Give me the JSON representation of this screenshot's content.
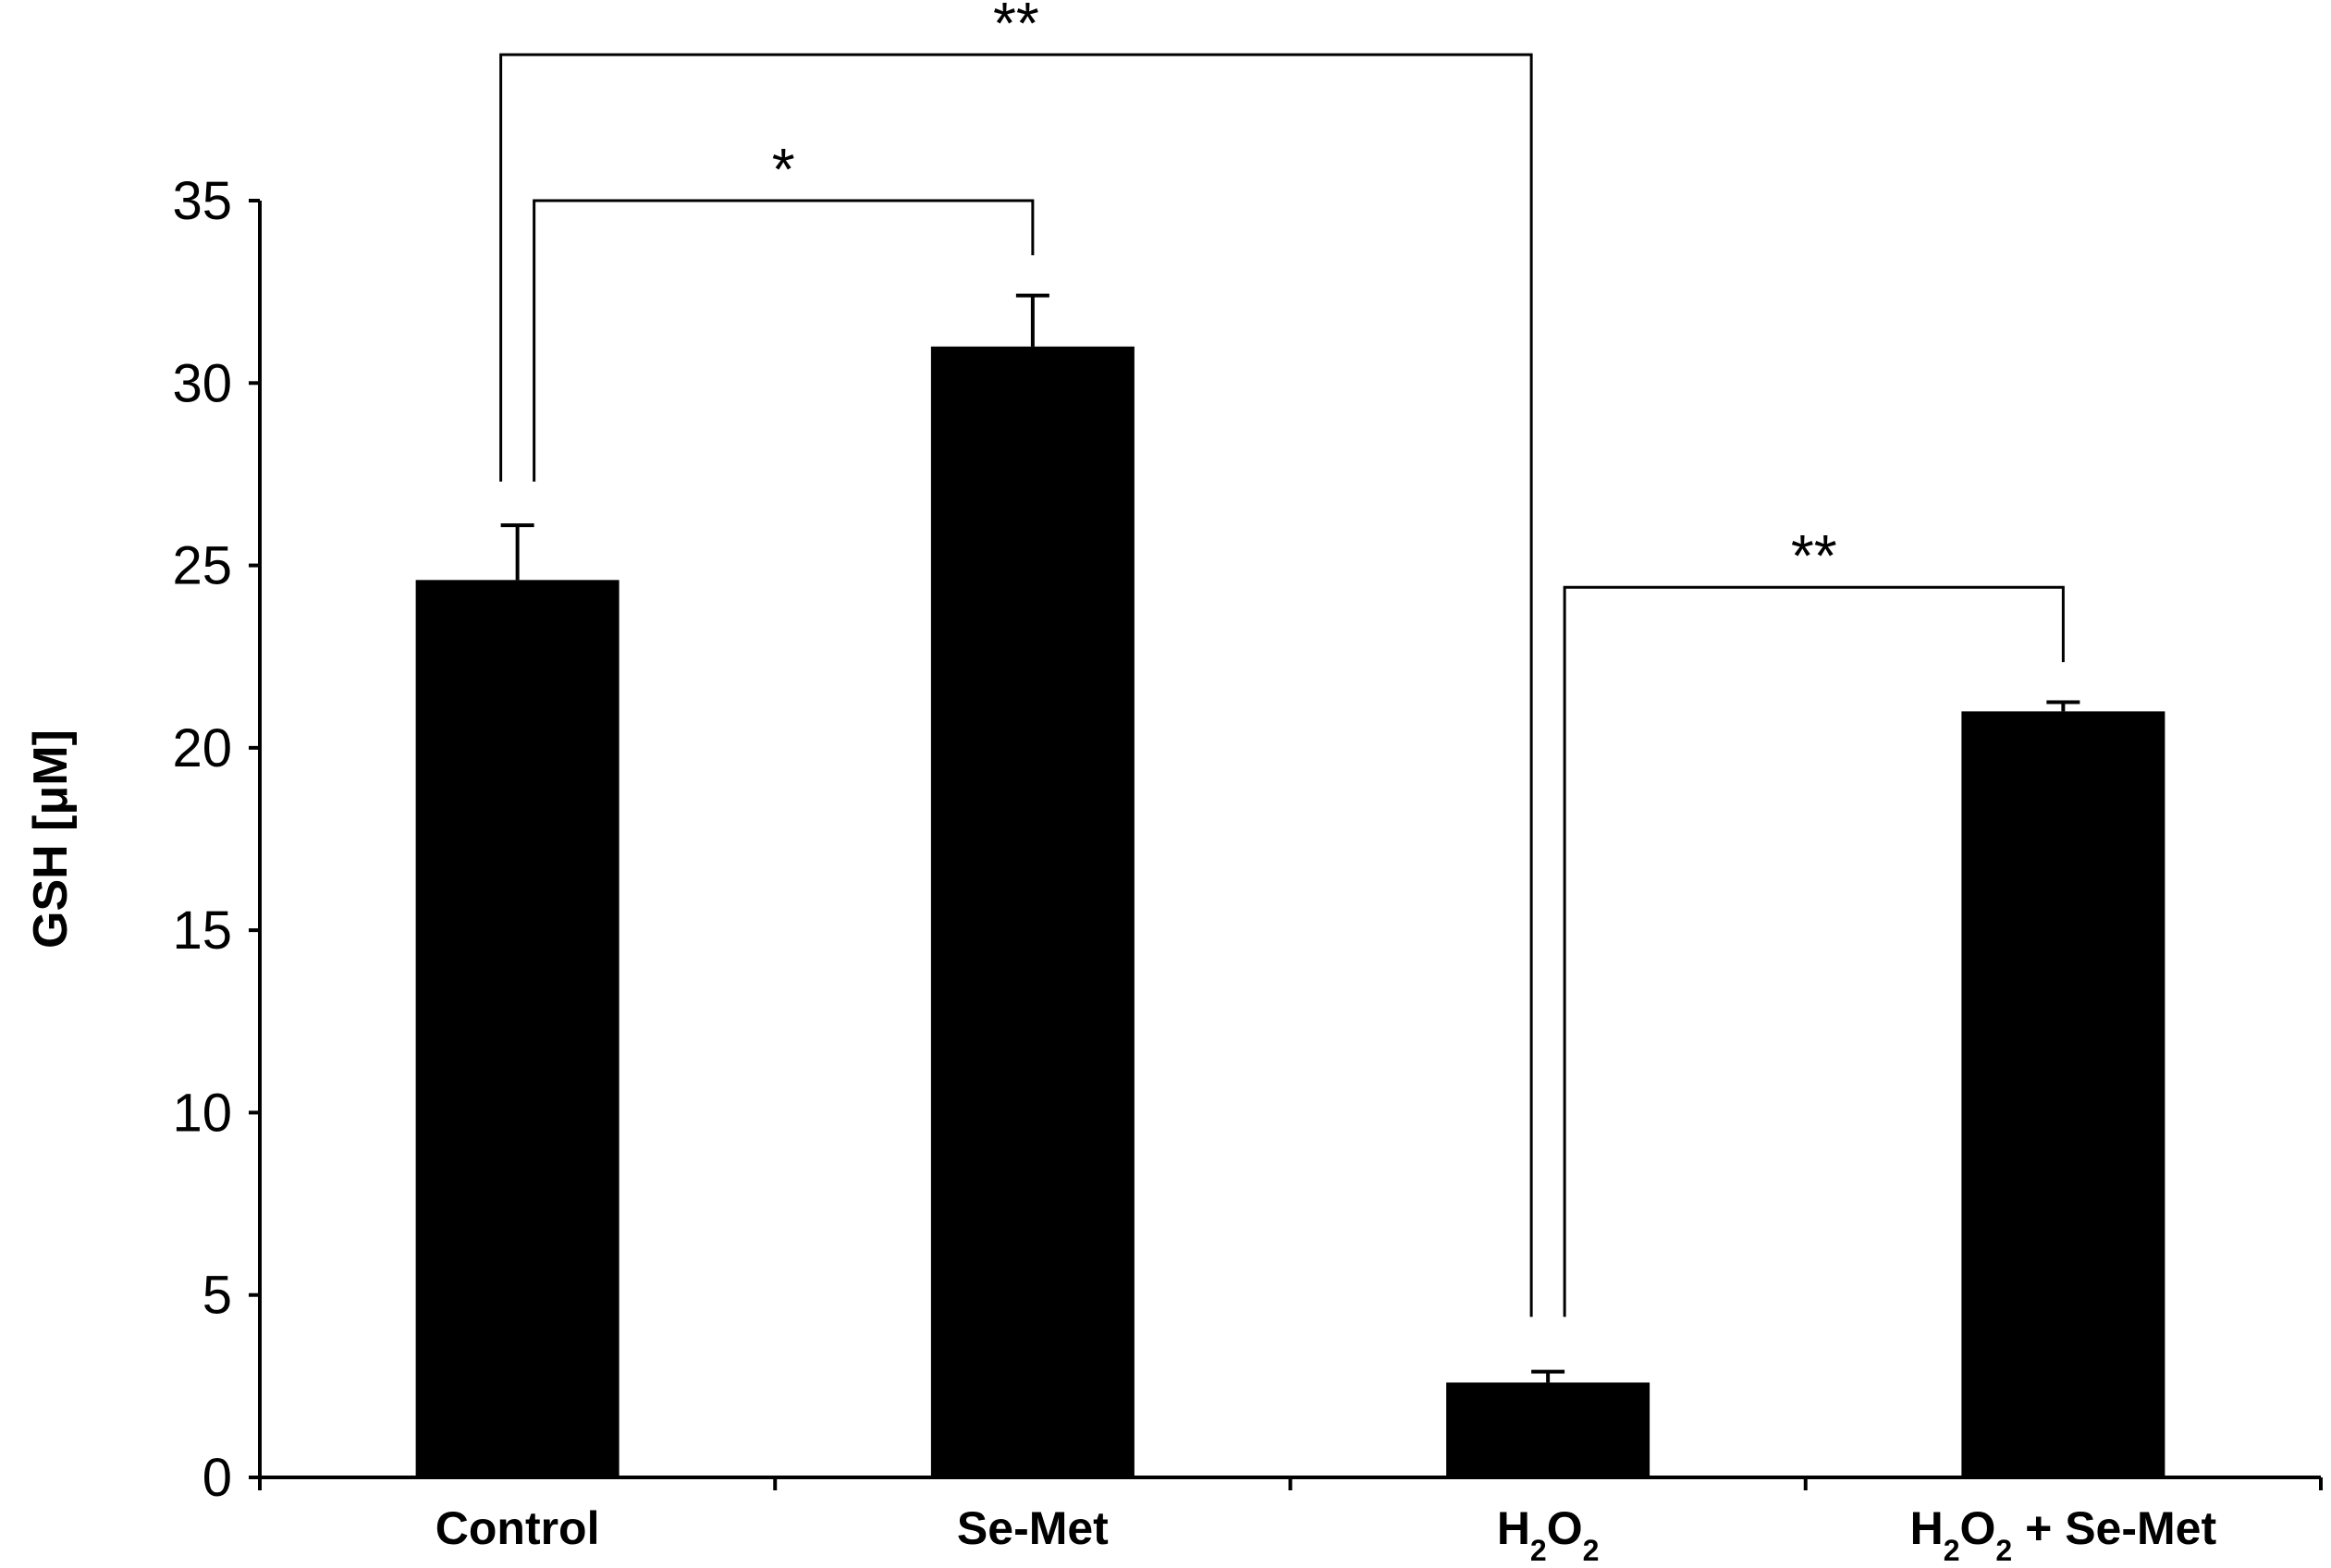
{
  "chart_data": {
    "type": "bar",
    "title": "",
    "xlabel": "",
    "ylabel": "GSH [μM]",
    "ylim": [
      0,
      35
    ],
    "yticks": [
      0,
      5,
      10,
      15,
      20,
      25,
      30,
      35
    ],
    "categories": [
      {
        "base": "Control",
        "parts": [
          {
            "t": "Control",
            "sub": false
          }
        ]
      },
      {
        "base": "Se-Met",
        "parts": [
          {
            "t": "Se-Met",
            "sub": false
          }
        ]
      },
      {
        "base": "H2O2",
        "parts": [
          {
            "t": "H",
            "sub": false
          },
          {
            "t": "2",
            "sub": true
          },
          {
            "t": "O",
            "sub": false
          },
          {
            "t": "2",
            "sub": true
          }
        ]
      },
      {
        "base": "H2O2 + Se-Met",
        "parts": [
          {
            "t": "H",
            "sub": false
          },
          {
            "t": "2",
            "sub": true
          },
          {
            "t": "O",
            "sub": false
          },
          {
            "t": "2",
            "sub": true
          },
          {
            "t": " + Se-Met",
            "sub": false
          }
        ]
      }
    ],
    "values": [
      24.6,
      31.0,
      2.6,
      21.0
    ],
    "errors": [
      1.5,
      1.4,
      0.3,
      0.25
    ],
    "bar_color": "#000000",
    "significance": [
      {
        "from": 0,
        "to": 2,
        "label": "**",
        "level": 39
      },
      {
        "from": 0,
        "to": 1,
        "label": "*",
        "level": 35
      },
      {
        "from": 2,
        "to": 3,
        "label": "**",
        "level": 24.4
      }
    ]
  }
}
